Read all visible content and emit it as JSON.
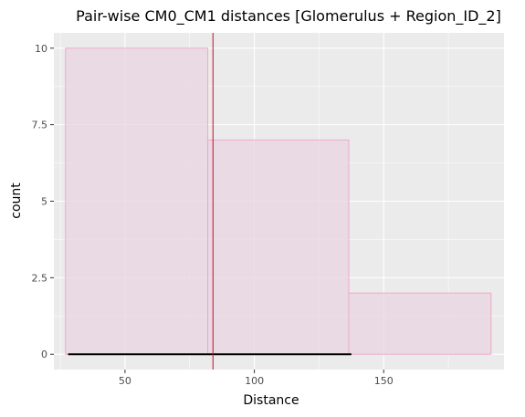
{
  "chart_data": {
    "type": "bar",
    "title": "Pair-wise CM0_CM1 distances [Glomerulus + Region_ID_2]",
    "xlabel": "Distance",
    "ylabel": "count",
    "xlim": [
      22.5,
      196.5
    ],
    "ylim": [
      -0.5,
      10.5
    ],
    "x_ticks": [
      50,
      100,
      150
    ],
    "y_ticks": [
      0,
      2.5,
      5,
      7.5,
      10
    ],
    "x_tick_labels": [
      "50",
      "100",
      "150"
    ],
    "y_tick_labels": [
      "0",
      "2.5",
      "5",
      "7.5",
      "10"
    ],
    "grid": true,
    "bins": [
      {
        "start": 27,
        "end": 82,
        "count": 10
      },
      {
        "start": 82,
        "end": 136.5,
        "count": 7
      },
      {
        "start": 136.5,
        "end": 191.5,
        "count": 2
      }
    ],
    "vline_x": 84,
    "range_segment": [
      28,
      137.5
    ],
    "colors": {
      "panel": "#ebebeb",
      "grid": "#ffffff",
      "bar_fill": "#e8d4e2",
      "bar_stroke": "#f0a9c9",
      "vline": "#c0102b",
      "segment": "#000000"
    }
  }
}
